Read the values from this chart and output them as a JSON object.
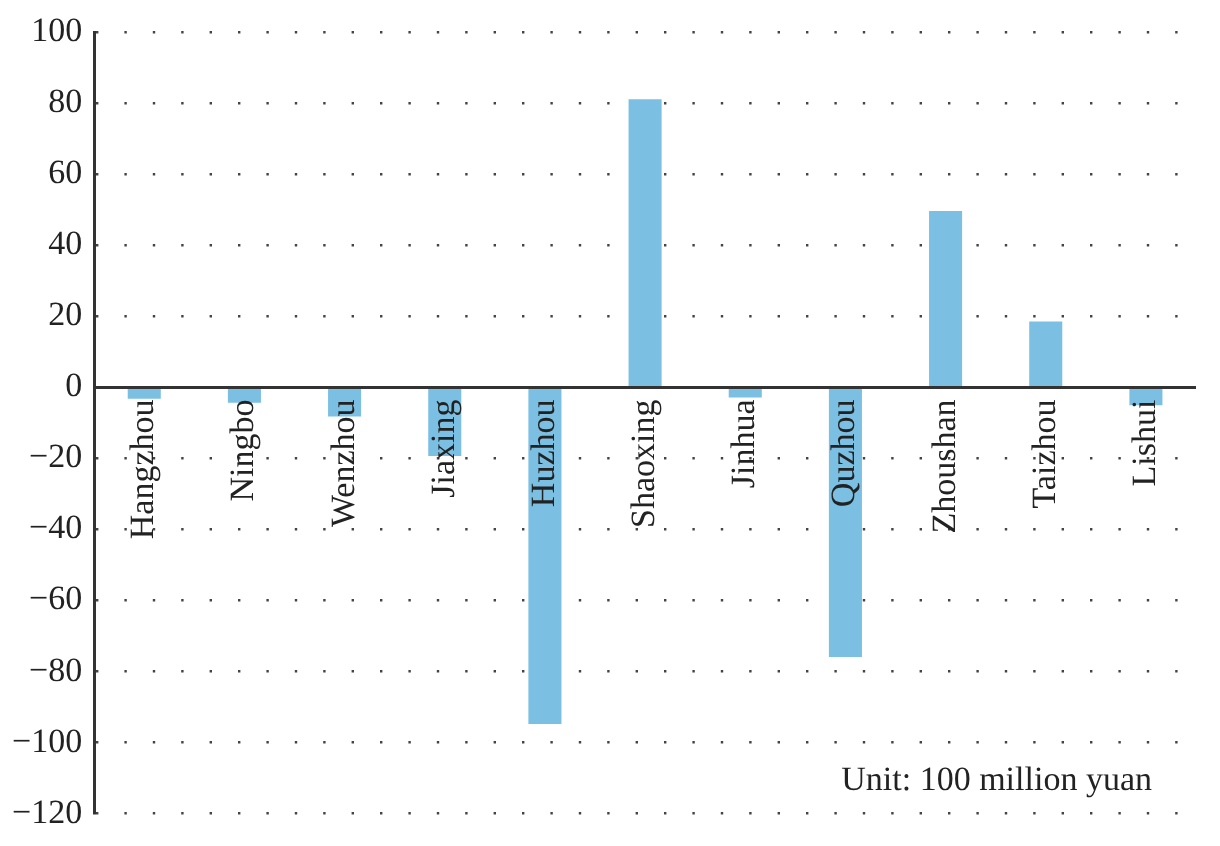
{
  "chart_data": {
    "type": "bar",
    "categories": [
      "Hangzhou",
      "Ningbo",
      "Wenzhou",
      "Jiaxing",
      "Huzhou",
      "Shaoxing",
      "Jinhua",
      "Quzhou",
      "Zhoushan",
      "Taizhou",
      "Lishui"
    ],
    "values": [
      -3.2,
      -4.3,
      -8.2,
      -19.3,
      -94.8,
      81.2,
      -2.8,
      -75.9,
      49.7,
      18.6,
      -5
    ],
    "color": "#7bbfe3",
    "ylim": [
      -120,
      100
    ],
    "yticks": [
      {
        "value": -120,
        "label": "−120"
      },
      {
        "value": -100,
        "label": "−100"
      },
      {
        "value": -80,
        "label": "−80"
      },
      {
        "value": -60,
        "label": "−60"
      },
      {
        "value": -40,
        "label": "−40"
      },
      {
        "value": -20,
        "label": "−20"
      },
      0,
      20,
      40,
      60,
      80,
      100
    ],
    "grid": "y",
    "legend": false,
    "annotations": [
      "Unit: 100 million yuan"
    ]
  }
}
